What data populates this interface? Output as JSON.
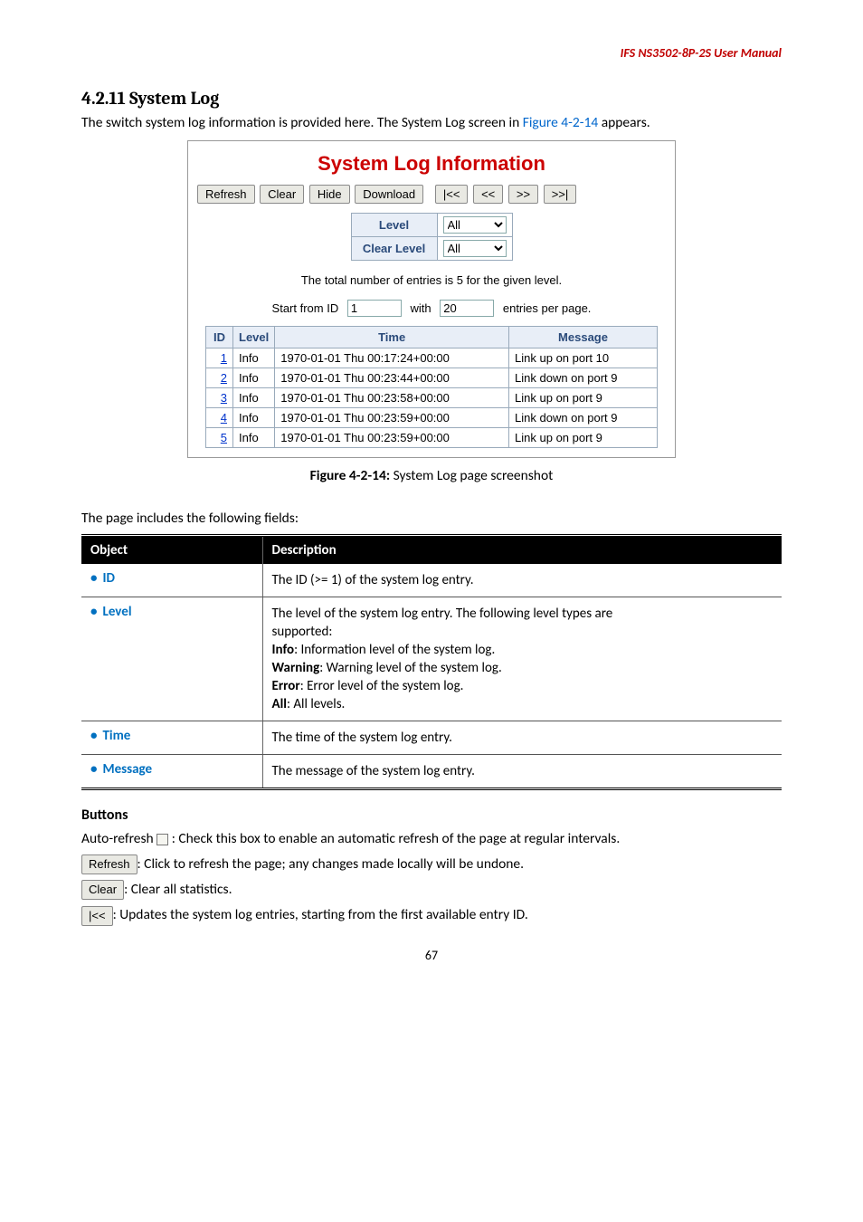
{
  "header": {
    "product": "IFS NS3502-8P-2S  User Manual"
  },
  "section": {
    "number": "4.2.11",
    "title": "System Log",
    "intro_pre": "The switch system log information is provided here. The System Log screen in ",
    "intro_link": "Figure 4-2-14",
    "intro_post": " appears."
  },
  "screenshot": {
    "title": "System Log Information",
    "buttons": {
      "refresh": "Refresh",
      "clear": "Clear",
      "hide": "Hide",
      "download": "Download",
      "first": "|<<",
      "prev": "<<",
      "next": ">>",
      "last": ">>|"
    },
    "level_label": "Level",
    "clear_level_label": "Clear Level",
    "level_value": "All",
    "clear_level_value": "All",
    "total_line": "The total number of entries is 5 for the given level.",
    "start_from_label": "Start from ID",
    "start_from_value": "1",
    "with_label": "with",
    "with_value": "20",
    "entries_label": "entries per page.",
    "columns": {
      "id": "ID",
      "level": "Level",
      "time": "Time",
      "message": "Message"
    },
    "rows": [
      {
        "id": "1",
        "level": "Info",
        "time": "1970-01-01 Thu 00:17:24+00:00",
        "message": "Link up on port 10"
      },
      {
        "id": "2",
        "level": "Info",
        "time": "1970-01-01 Thu 00:23:44+00:00",
        "message": "Link down on port 9"
      },
      {
        "id": "3",
        "level": "Info",
        "time": "1970-01-01 Thu 00:23:58+00:00",
        "message": "Link up on port 9"
      },
      {
        "id": "4",
        "level": "Info",
        "time": "1970-01-01 Thu 00:23:59+00:00",
        "message": "Link down on port 9"
      },
      {
        "id": "5",
        "level": "Info",
        "time": "1970-01-01 Thu 00:23:59+00:00",
        "message": "Link up on port 9"
      }
    ]
  },
  "caption_bold": "Figure 4-2-14:",
  "caption_rest": " System Log page screenshot",
  "fields_intro": "The page includes the following fields:",
  "obj_table": {
    "header_object": "Object",
    "header_desc": "Description",
    "rows": [
      {
        "obj": "ID",
        "lines": [
          "The ID (>= 1) of the system log entry."
        ]
      },
      {
        "obj": "Level",
        "lines": [
          "The level of the system log entry. The following level types are",
          "supported:",
          "<b>Info</b>: Information level of the system log.",
          "<b>Warning</b>: Warning level of the system log.",
          "<b>Error</b>: Error level of the system log.",
          "<b>All</b>: All levels."
        ]
      },
      {
        "obj": "Time",
        "lines": [
          "The time of the system log entry."
        ]
      },
      {
        "obj": "Message",
        "lines": [
          "The message of the system log entry."
        ]
      }
    ]
  },
  "buttons_section": {
    "heading": "Buttons",
    "auto_refresh_pre": "Auto-refresh ",
    "auto_refresh_post": " : Check this box to enable an automatic refresh of the page at regular intervals.",
    "refresh_btn": "Refresh",
    "refresh_text": ": Click to refresh the page; any changes made locally will be undone.",
    "clear_btn": "Clear",
    "clear_text": ": Clear all statistics.",
    "first_btn": "|<<",
    "first_text": ": Updates the system log entries, starting from the first available entry ID."
  },
  "page_number": "67"
}
